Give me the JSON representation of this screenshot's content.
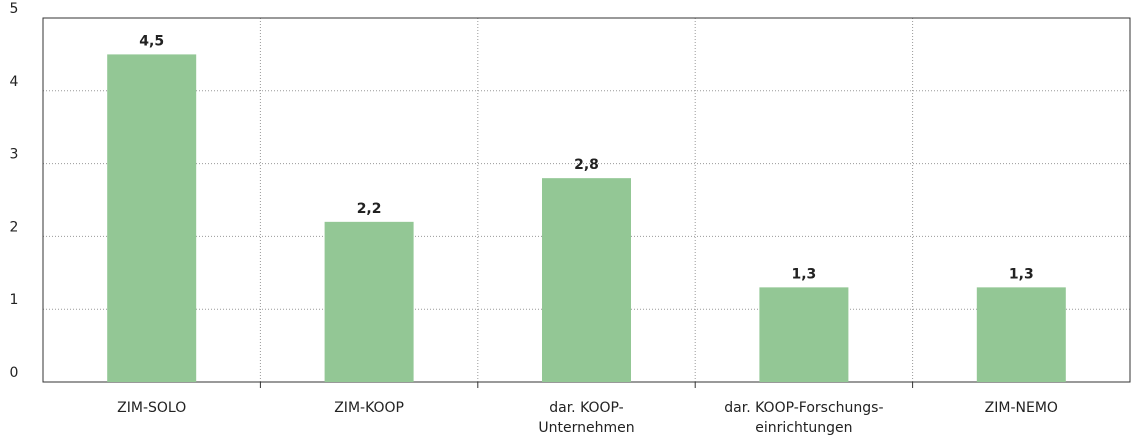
{
  "chart_data": {
    "type": "bar",
    "categories": [
      "ZIM-SOLO",
      "ZIM-KOOP",
      "dar. KOOP-\nUnternehmen",
      "dar. KOOP-Forschungs-\neinrichtungen",
      "ZIM-NEMO"
    ],
    "values": [
      4.5,
      2.2,
      2.8,
      1.3,
      1.3
    ],
    "value_labels": [
      "4,5",
      "2,2",
      "2,8",
      "1,3",
      "1,3"
    ],
    "color": "#93c795",
    "ylim": [
      0,
      5
    ],
    "yticks": [
      0,
      1,
      2,
      3,
      4,
      5
    ],
    "grid": true
  }
}
